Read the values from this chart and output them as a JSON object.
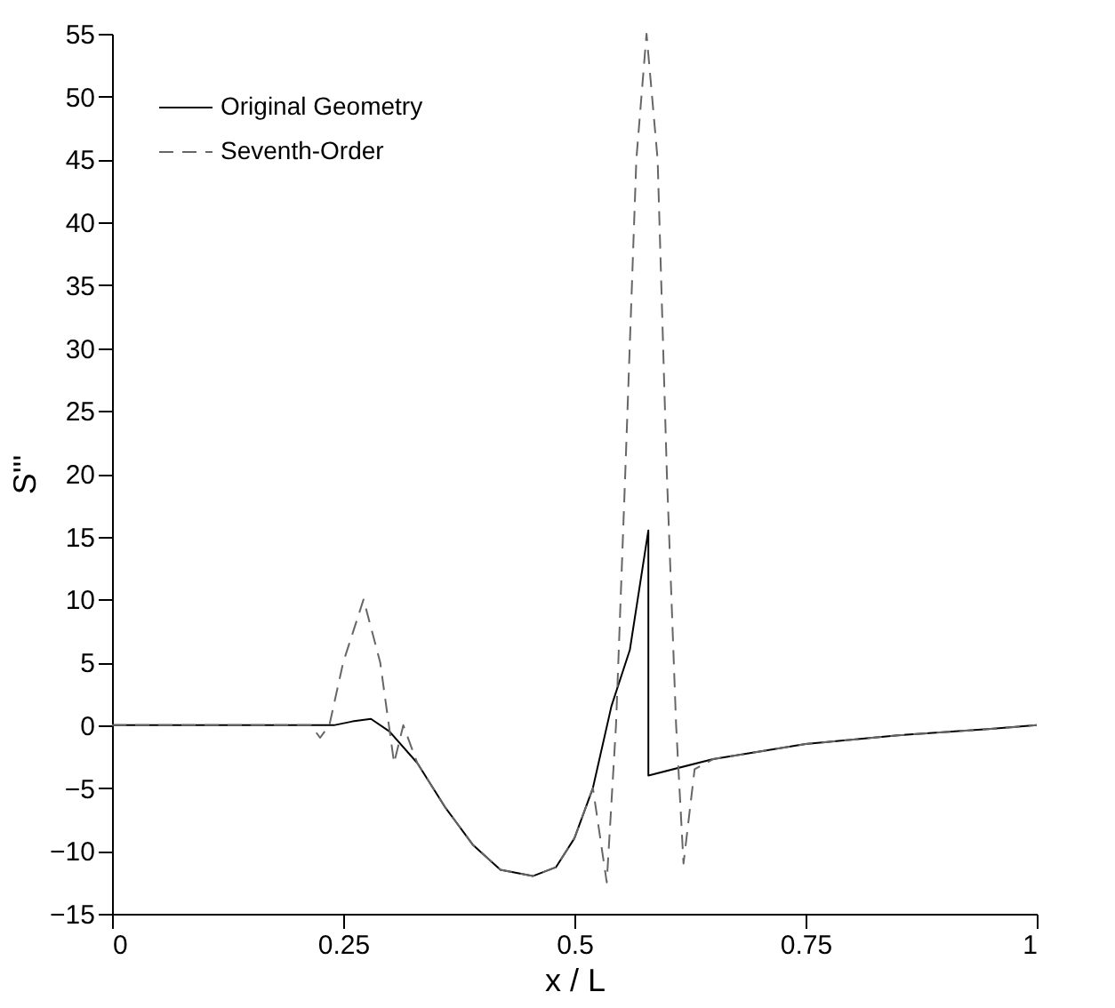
{
  "chart_data": {
    "type": "line",
    "xlabel": "x / L",
    "ylabel": "S'''",
    "xlim": [
      0,
      1
    ],
    "ylim": [
      -15,
      55
    ],
    "xticks": [
      0,
      0.25,
      0.5,
      0.75,
      1
    ],
    "yticks": [
      -15,
      -10,
      -5,
      0,
      5,
      10,
      15,
      20,
      25,
      30,
      35,
      40,
      45,
      50,
      55
    ],
    "grid": false,
    "legend": "top left",
    "marker": "none",
    "series": [
      {
        "name": "Original Geometry",
        "color": "#000000",
        "line_style": "solid",
        "x": [
          0,
          0.24,
          0.26,
          0.28,
          0.3,
          0.33,
          0.36,
          0.39,
          0.42,
          0.455,
          0.48,
          0.5,
          0.52,
          0.54,
          0.56,
          0.58,
          0.58,
          0.65,
          0.75,
          0.85,
          0.95,
          1
        ],
        "values": [
          0,
          0,
          0.3,
          0.5,
          -0.5,
          -3,
          -6.5,
          -9.5,
          -11.5,
          -12,
          -11.3,
          -9,
          -5,
          1.5,
          6,
          15.5,
          -4,
          -2.7,
          -1.5,
          -0.8,
          -0.3,
          0
        ]
      },
      {
        "name": "Seventh-Order",
        "color": "#666666",
        "line_style": "dashed",
        "x": [
          0,
          0.215,
          0.225,
          0.235,
          0.25,
          0.272,
          0.29,
          0.305,
          0.315,
          0.33,
          0.36,
          0.39,
          0.42,
          0.455,
          0.48,
          0.5,
          0.52,
          0.535,
          0.545,
          0.555,
          0.567,
          0.578,
          0.59,
          0.6,
          0.61,
          0.618,
          0.63,
          0.65,
          0.75,
          0.85,
          0.95,
          1
        ],
        "values": [
          0,
          0,
          -1,
          0,
          5,
          10,
          5,
          -3,
          0,
          -3,
          -6.5,
          -9.5,
          -11.5,
          -12,
          -11.3,
          -9,
          -5,
          -12.5,
          0,
          20,
          45,
          55,
          45,
          20,
          0,
          -11,
          -3.5,
          -2.7,
          -1.5,
          -0.8,
          -0.3,
          0
        ]
      }
    ]
  }
}
